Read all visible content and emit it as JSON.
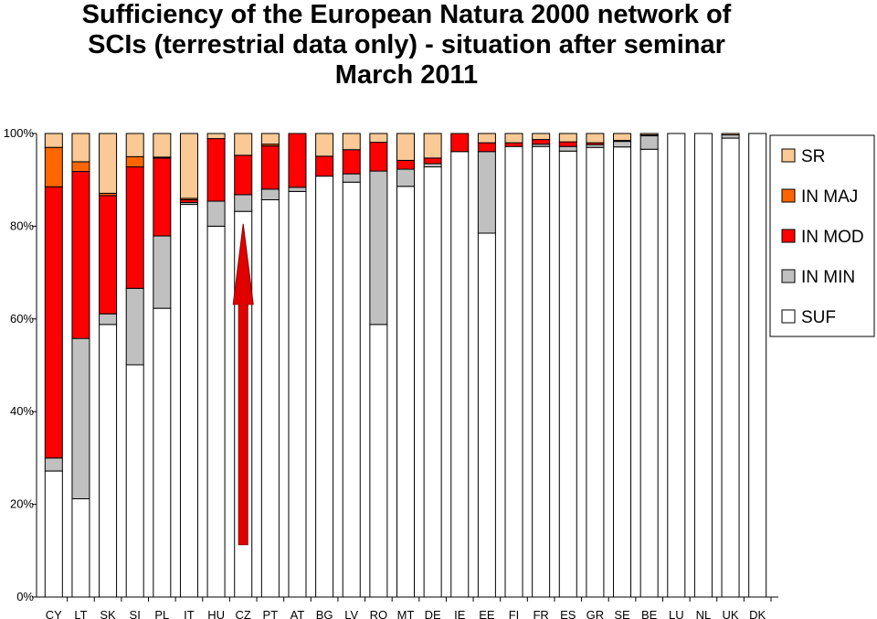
{
  "title_lines": [
    "Sufficiency of the European Natura 2000 network of",
    "SCIs  (terrestrial data only) - situation after seminar",
    "March 2011"
  ],
  "chart_data": {
    "type": "bar",
    "stacked": true,
    "percent": true,
    "title": "Sufficiency of the European Natura 2000 network of SCIs  (terrestrial data only) - situation after seminar March 2011",
    "xlabel": "",
    "ylabel": "",
    "ylim": [
      0,
      100
    ],
    "yticks": [
      "0%",
      "20%",
      "40%",
      "60%",
      "80%",
      "100%"
    ],
    "grid": false,
    "legend_position": "right",
    "categories": [
      "CY",
      "LT",
      "SK",
      "SI",
      "PL",
      "IT",
      "HU",
      "CZ",
      "PT",
      "AT",
      "BG",
      "LV",
      "RO",
      "MT",
      "DE",
      "IE",
      "EE",
      "FI",
      "FR",
      "ES",
      "GR",
      "SE",
      "BE",
      "LU",
      "NL",
      "UK",
      "DK"
    ],
    "series": [
      {
        "name": "SUF",
        "color": "#ffffff",
        "values": [
          27.2,
          21.2,
          58.8,
          50.1,
          62.3,
          84.7,
          80.0,
          83.2,
          85.7,
          87.5,
          90.8,
          89.5,
          58.8,
          88.6,
          92.8,
          96.1,
          78.5,
          97.2,
          97.2,
          96.2,
          97.0,
          97.1,
          96.6,
          100,
          100,
          99.0,
          100
        ]
      },
      {
        "name": "IN MIN",
        "color": "#c0c0c0",
        "values": [
          2.8,
          34.6,
          2.3,
          16.5,
          15.6,
          0.4,
          5.4,
          3.6,
          2.3,
          0.9,
          0.0,
          1.8,
          33.1,
          3.7,
          0.7,
          0.0,
          17.6,
          0.0,
          0.5,
          1.0,
          0.6,
          1.2,
          2.9,
          0,
          0,
          0.7,
          0
        ]
      },
      {
        "name": "IN MOD",
        "color": "#ff0000",
        "values": [
          58.5,
          36.0,
          25.5,
          26.2,
          16.8,
          0.6,
          13.5,
          8.5,
          9.3,
          11.6,
          4.3,
          5.2,
          6.2,
          1.9,
          1.2,
          3.9,
          1.9,
          0.8,
          1.0,
          1.0,
          0.4,
          0.2,
          0.2,
          0,
          0,
          0,
          0
        ]
      },
      {
        "name": "IN MAJ",
        "color": "#ff6600",
        "values": [
          8.5,
          2.1,
          0.5,
          2.2,
          0.2,
          0.3,
          0.0,
          0.0,
          0.4,
          0.0,
          0.0,
          0.0,
          0.0,
          0.0,
          0.0,
          0.0,
          0.0,
          0.0,
          0.0,
          0.0,
          0.0,
          0.0,
          0.0,
          0,
          0,
          0,
          0
        ]
      },
      {
        "name": "SR",
        "color": "#fbc995",
        "values": [
          3.0,
          6.1,
          12.9,
          5.0,
          5.1,
          14.0,
          1.1,
          4.7,
          2.3,
          0.0,
          4.9,
          3.5,
          1.9,
          5.8,
          5.3,
          0.0,
          2.0,
          2.0,
          1.3,
          1.8,
          2.0,
          1.5,
          0.3,
          0,
          0,
          0.3,
          0
        ]
      }
    ],
    "legend_order": [
      "SR",
      "IN MAJ",
      "IN MOD",
      "IN MIN",
      "SUF"
    ],
    "annotations": [
      {
        "type": "arrow",
        "category": "CZ",
        "from_value": 11.3,
        "to_value": 80.5,
        "color": "#e00000"
      }
    ]
  }
}
